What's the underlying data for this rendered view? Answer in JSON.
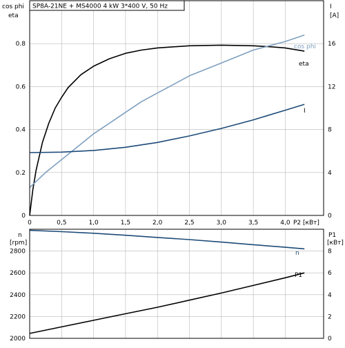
{
  "title": "SP8A-21NE + MS4000   4 kW   3*400 V, 50 Hz",
  "colors": {
    "dark_blue": "#1b4a78",
    "light_blue": "#7f9fbf",
    "black": "#000000",
    "grid": "#b8b8b8"
  },
  "chart_data": [
    {
      "type": "line",
      "title": "SP8A-21NE + MS4000   4 kW   3*400 V, 50 Hz",
      "grid": true,
      "xlim": [
        0,
        4.6
      ],
      "xticks": [
        "0",
        "0,5",
        "1,0",
        "1,5",
        "2,0",
        "2,5",
        "3,0",
        "3,5",
        "4,0"
      ],
      "xtick_values": [
        0,
        0.5,
        1.0,
        1.5,
        2.0,
        2.5,
        3.0,
        3.5,
        4.0
      ],
      "xlabel": "P2 [кВт]",
      "ylabel_left": [
        "cos phi",
        "eta"
      ],
      "ylim_left": [
        0,
        1.0
      ],
      "yticks_left": [
        "0",
        "0.2",
        "0.4",
        "0.6",
        "0.8"
      ],
      "ylabel_right": [
        "I",
        "[A]"
      ],
      "ylim_right": [
        0,
        20
      ],
      "yticks_right": [
        "0",
        "4",
        "8",
        "12",
        "16"
      ],
      "series": [
        {
          "name": "eta",
          "axis": "left",
          "color": "#000000",
          "x": [
            0,
            0.05,
            0.1,
            0.2,
            0.3,
            0.4,
            0.5,
            0.6,
            0.8,
            1.0,
            1.25,
            1.5,
            1.75,
            2.0,
            2.5,
            3.0,
            3.5,
            3.8,
            4.0,
            4.3
          ],
          "y": [
            0,
            0.12,
            0.21,
            0.34,
            0.43,
            0.5,
            0.55,
            0.595,
            0.655,
            0.695,
            0.73,
            0.755,
            0.77,
            0.78,
            0.79,
            0.793,
            0.79,
            0.785,
            0.78,
            0.765
          ]
        },
        {
          "name": "cos phi",
          "axis": "left",
          "color": "#7f9fbf",
          "x": [
            0,
            0.25,
            0.5,
            0.75,
            1.0,
            1.25,
            1.5,
            1.75,
            2.0,
            2.25,
            2.5,
            2.75,
            3.0,
            3.25,
            3.5,
            3.75,
            4.0,
            4.3
          ],
          "y": [
            0.13,
            0.2,
            0.26,
            0.32,
            0.38,
            0.43,
            0.48,
            0.53,
            0.57,
            0.61,
            0.65,
            0.68,
            0.71,
            0.74,
            0.77,
            0.79,
            0.81,
            0.84
          ]
        },
        {
          "name": "I",
          "axis": "right",
          "color": "#1b4a78",
          "x": [
            0,
            0.5,
            1.0,
            1.5,
            2.0,
            2.5,
            3.0,
            3.5,
            4.0,
            4.3
          ],
          "y": [
            5.85,
            5.9,
            6.05,
            6.35,
            6.8,
            7.4,
            8.1,
            8.9,
            9.8,
            10.35
          ]
        }
      ]
    },
    {
      "type": "line",
      "grid": true,
      "xlim": [
        0,
        4.6
      ],
      "ylabel_left": [
        "n",
        "[rpm]"
      ],
      "ylim_left": [
        2000,
        3000
      ],
      "yticks_left": [
        "2000",
        "2200",
        "2400",
        "2600",
        "2800"
      ],
      "ylabel_right": [
        "P1",
        "[кВт]"
      ],
      "ylim_right": [
        0,
        10
      ],
      "yticks_right": [
        "0",
        "2",
        "4",
        "6",
        "8"
      ],
      "series": [
        {
          "name": "n",
          "axis": "left",
          "color": "#1b4a78",
          "x": [
            0,
            0.5,
            1.0,
            1.5,
            2.0,
            2.5,
            3.0,
            3.5,
            4.0,
            4.3
          ],
          "y": [
            2990,
            2978,
            2963,
            2945,
            2925,
            2905,
            2882,
            2858,
            2835,
            2820
          ]
        },
        {
          "name": "P1",
          "axis": "right",
          "color": "#000000",
          "x": [
            0,
            0.5,
            1.0,
            1.5,
            2.0,
            2.5,
            3.0,
            3.5,
            4.0,
            4.3
          ],
          "y": [
            0.45,
            1.05,
            1.65,
            2.25,
            2.85,
            3.5,
            4.15,
            4.85,
            5.55,
            6.0
          ]
        }
      ]
    }
  ]
}
